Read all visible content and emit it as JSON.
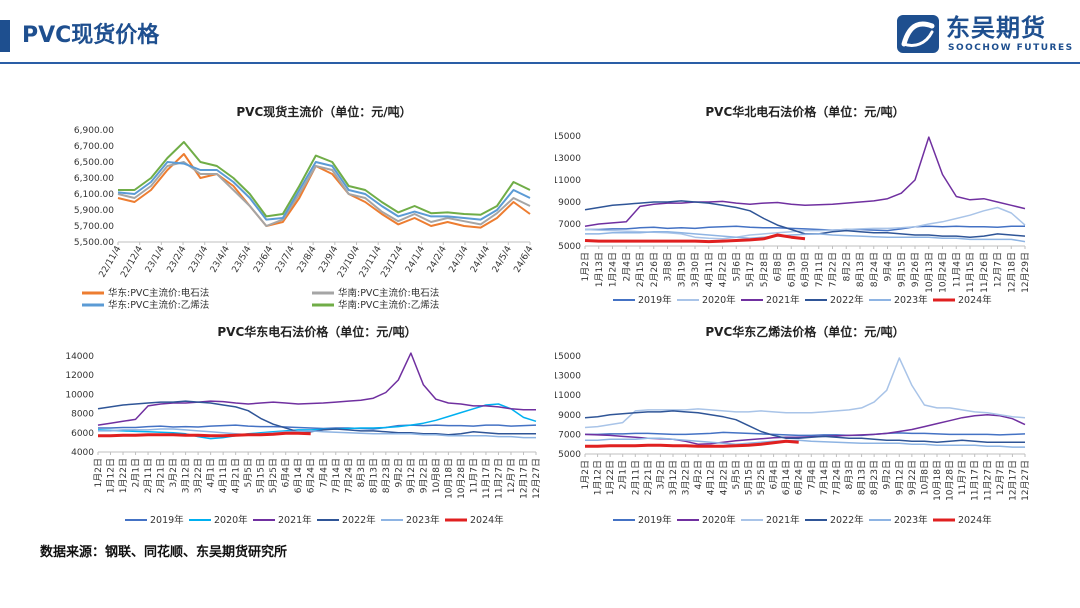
{
  "page": {
    "title": "PVC现货价格",
    "source": "数据来源：钢联、同花顺、东吴期货研究所"
  },
  "logo": {
    "cn": "东吴期货",
    "en": "SOOCHOW FUTURES",
    "primary_color": "#1e4f8f"
  },
  "chart_data": [
    {
      "id": "spot",
      "type": "line",
      "title": "PVC现货主流价（单位：元/吨）",
      "ylim": [
        5500,
        6900
      ],
      "y_ticks": [
        5500,
        5700,
        5900,
        6100,
        6300,
        6500,
        6700,
        6900
      ],
      "y_tick_labels": [
        "5,500.00",
        "5,700.00",
        "5,900.00",
        "6,100.00",
        "6,300.00",
        "6,500.00",
        "6,700.00",
        "6,900.00"
      ],
      "x_tick_labels": [
        "22/11/4",
        "22/12/4",
        "23/1/4",
        "23/2/4",
        "23/3/4",
        "23/4/4",
        "23/5/4",
        "23/6/4",
        "23/7/4",
        "23/8/4",
        "23/9/4",
        "23/10/4",
        "23/11/4",
        "23/12/4",
        "24/1/4",
        "24/2/4",
        "24/3/4",
        "24/4/4",
        "24/5/4",
        "24/6/4"
      ],
      "legend_cols": 2,
      "series": [
        {
          "name": "华东:PVC主流价:电石法",
          "color": "#ed7d31",
          "width": 2,
          "values": [
            6050,
            6000,
            6150,
            6400,
            6600,
            6300,
            6350,
            6200,
            5950,
            5700,
            5750,
            6050,
            6450,
            6350,
            6100,
            6000,
            5850,
            5720,
            5800,
            5700,
            5750,
            5700,
            5680,
            5800,
            6000,
            5850
          ]
        },
        {
          "name": "华南:PVC主流价:电石法",
          "color": "#a5a5a5",
          "width": 2,
          "values": [
            6100,
            6050,
            6200,
            6450,
            6500,
            6350,
            6350,
            6150,
            5950,
            5700,
            5780,
            6100,
            6450,
            6400,
            6100,
            6050,
            5880,
            5760,
            5850,
            5750,
            5800,
            5760,
            5720,
            5860,
            6050,
            5950
          ]
        },
        {
          "name": "华东:PVC主流价:乙烯法",
          "color": "#5b9bd5",
          "width": 2,
          "values": [
            6120,
            6100,
            6250,
            6500,
            6480,
            6400,
            6400,
            6250,
            6050,
            5780,
            5800,
            6150,
            6500,
            6450,
            6150,
            6100,
            5950,
            5820,
            5880,
            5820,
            5820,
            5800,
            5780,
            5900,
            6150,
            6050
          ]
        },
        {
          "name": "华南:PVC主流价:乙烯法",
          "color": "#70ad47",
          "width": 2,
          "values": [
            6150,
            6150,
            6300,
            6550,
            6750,
            6500,
            6450,
            6300,
            6100,
            5820,
            5850,
            6200,
            6580,
            6500,
            6200,
            6150,
            6000,
            5870,
            5950,
            5860,
            5870,
            5850,
            5840,
            5950,
            6250,
            6150
          ]
        }
      ]
    },
    {
      "id": "north",
      "type": "line",
      "title": "PVC华北电石法价格（单位：元/吨）",
      "ylim": [
        5000,
        15000
      ],
      "y_ticks": [
        5000,
        7000,
        9000,
        11000,
        13000,
        15000
      ],
      "y_tick_labels": [
        "5000",
        "7000",
        "9000",
        "11000",
        "13000",
        "15000"
      ],
      "x_tick_labels": [
        "1月2日",
        "1月13日",
        "1月24日",
        "2月4日",
        "2月15日",
        "2月26日",
        "3月8日",
        "3月19日",
        "3月30日",
        "4月11日",
        "4月22日",
        "5月6日",
        "5月17日",
        "5月28日",
        "6月8日",
        "6月19日",
        "6月30日",
        "7月11日",
        "7月22日",
        "8月2日",
        "8月13日",
        "8月24日",
        "9月4日",
        "9月15日",
        "9月26日",
        "10月13日",
        "10月24日",
        "11月4日",
        "11月15日",
        "11月26日",
        "12月7日",
        "12月18日",
        "12月29日"
      ],
      "legend_cols": 6,
      "series": [
        {
          "name": "2019年",
          "color": "#4472c4",
          "width": 1.5,
          "values": [
            6500,
            6500,
            6550,
            6550,
            6650,
            6700,
            6600,
            6650,
            6600,
            6700,
            6750,
            6800,
            6700,
            6650,
            6650,
            6600,
            6550,
            6500,
            6450,
            6500,
            6500,
            6450,
            6400,
            6550,
            6750,
            6800,
            6750,
            6800,
            6750,
            6750,
            6700,
            6800,
            6800
          ]
        },
        {
          "name": "2020年",
          "color": "#a9c4e8",
          "width": 1.5,
          "values": [
            6500,
            6450,
            6400,
            6350,
            6300,
            6250,
            6200,
            6100,
            5800,
            5700,
            5650,
            5800,
            6000,
            6100,
            6200,
            6300,
            6400,
            6400,
            6450,
            6500,
            6550,
            6600,
            6600,
            6650,
            6750,
            7000,
            7200,
            7500,
            7800,
            8200,
            8500,
            8000,
            6900
          ]
        },
        {
          "name": "2021年",
          "color": "#7030a0",
          "width": 1.5,
          "values": [
            6800,
            7000,
            7100,
            7200,
            8600,
            8800,
            8900,
            8900,
            9000,
            9000,
            9050,
            8900,
            8800,
            8900,
            8950,
            8800,
            8700,
            8750,
            8800,
            8900,
            9000,
            9100,
            9300,
            9800,
            11000,
            14900,
            11500,
            9500,
            9200,
            9300,
            9000,
            8700,
            8400
          ]
        },
        {
          "name": "2022年",
          "color": "#2f5597",
          "width": 1.5,
          "values": [
            8300,
            8500,
            8700,
            8800,
            8900,
            9000,
            9000,
            9100,
            9000,
            8900,
            8700,
            8500,
            8200,
            7500,
            6900,
            6500,
            6100,
            6100,
            6300,
            6400,
            6300,
            6200,
            6200,
            6100,
            6000,
            6000,
            5900,
            5900,
            5800,
            5900,
            6100,
            6000,
            5900
          ]
        },
        {
          "name": "2023年",
          "color": "#8eb4e3",
          "width": 1.5,
          "values": [
            6100,
            6100,
            6200,
            6200,
            6200,
            6300,
            6300,
            6200,
            6100,
            6000,
            5900,
            5800,
            5700,
            5800,
            5900,
            6000,
            6050,
            6100,
            6000,
            5950,
            5900,
            5850,
            5800,
            5800,
            5800,
            5800,
            5700,
            5700,
            5600,
            5600,
            5600,
            5600,
            5400
          ]
        },
        {
          "name": "2024年",
          "color": "#e02020",
          "width": 3,
          "values": [
            5500,
            5450,
            5450,
            5450,
            5450,
            5450,
            5450,
            5450,
            5450,
            5400,
            5450,
            5500,
            5550,
            5650,
            6000,
            5800,
            5650
          ]
        }
      ]
    },
    {
      "id": "east",
      "type": "line",
      "title": "PVC华东电石法价格（单位：元/吨）",
      "ylim": [
        4000,
        14000
      ],
      "y_ticks": [
        4000,
        6000,
        8000,
        10000,
        12000,
        14000
      ],
      "y_tick_labels": [
        "4000",
        "6000",
        "8000",
        "10000",
        "12000",
        "14000"
      ],
      "x_tick_labels": [
        "1月2日",
        "1月12日",
        "1月22日",
        "2月1日",
        "2月11日",
        "2月21日",
        "3月2日",
        "3月12日",
        "3月22日",
        "4月1日",
        "4月11日",
        "4月21日",
        "5月5日",
        "5月15日",
        "5月25日",
        "6月4日",
        "6月14日",
        "6月24日",
        "7月4日",
        "7月14日",
        "7月24日",
        "8月3日",
        "8月13日",
        "8月23日",
        "9月2日",
        "9月12日",
        "9月22日",
        "10月8日",
        "10月18日",
        "10月28日",
        "11月7日",
        "11月17日",
        "11月27日",
        "12月7日",
        "12月17日",
        "12月27日"
      ],
      "legend_cols": 6,
      "series": [
        {
          "name": "2019年",
          "color": "#4472c4",
          "width": 1.5,
          "values": [
            6500,
            6500,
            6550,
            6550,
            6650,
            6700,
            6600,
            6650,
            6600,
            6700,
            6750,
            6800,
            6700,
            6650,
            6650,
            6600,
            6550,
            6500,
            6450,
            6500,
            6500,
            6450,
            6400,
            6550,
            6750,
            6800,
            6750,
            6800,
            6750,
            6750,
            6700,
            6800,
            6800,
            6700,
            6750,
            6800
          ]
        },
        {
          "name": "2020年",
          "color": "#00b0f0",
          "width": 1.5,
          "values": [
            6300,
            6250,
            6200,
            6150,
            6100,
            6050,
            6000,
            5900,
            5600,
            5400,
            5500,
            5700,
            5900,
            6000,
            6100,
            6200,
            6300,
            6300,
            6350,
            6400,
            6450,
            6500,
            6500,
            6550,
            6650,
            6800,
            7000,
            7300,
            7700,
            8100,
            8500,
            8900,
            9000,
            8500,
            7600,
            7200
          ]
        },
        {
          "name": "2021年",
          "color": "#7030a0",
          "width": 1.5,
          "values": [
            6800,
            7000,
            7200,
            7400,
            8800,
            9000,
            9100,
            9100,
            9200,
            9300,
            9250,
            9100,
            9000,
            9100,
            9200,
            9100,
            9000,
            9050,
            9100,
            9200,
            9300,
            9400,
            9600,
            10200,
            11500,
            14300,
            11000,
            9500,
            9100,
            9000,
            8800,
            8800,
            8700,
            8500,
            8400,
            8400
          ]
        },
        {
          "name": "2022年",
          "color": "#2f5597",
          "width": 1.5,
          "values": [
            8500,
            8700,
            8900,
            9000,
            9100,
            9200,
            9200,
            9300,
            9200,
            9100,
            8900,
            8700,
            8300,
            7500,
            6900,
            6500,
            6100,
            6100,
            6300,
            6400,
            6300,
            6200,
            6200,
            6100,
            6000,
            6000,
            5900,
            5900,
            5800,
            5900,
            6100,
            6000,
            5900,
            5900,
            5900,
            5900
          ]
        },
        {
          "name": "2023年",
          "color": "#8eb4e3",
          "width": 1.5,
          "values": [
            6200,
            6200,
            6300,
            6300,
            6300,
            6400,
            6400,
            6300,
            6200,
            6100,
            6000,
            5900,
            5800,
            5900,
            6000,
            6100,
            6150,
            6200,
            6100,
            6050,
            6000,
            5950,
            5900,
            5900,
            5900,
            5900,
            5800,
            5800,
            5700,
            5700,
            5700,
            5700,
            5600,
            5600,
            5500,
            5500
          ]
        },
        {
          "name": "2024年",
          "color": "#e02020",
          "width": 3,
          "values": [
            5700,
            5700,
            5750,
            5750,
            5800,
            5800,
            5800,
            5750,
            5750,
            5700,
            5700,
            5750,
            5800,
            5800,
            5850,
            5950,
            5950,
            5900
          ]
        }
      ]
    },
    {
      "id": "ethylene",
      "type": "line",
      "title": "PVC华东乙烯法价格（单位：元/吨）",
      "ylim": [
        5000,
        15000
      ],
      "y_ticks": [
        5000,
        7000,
        9000,
        11000,
        13000,
        15000
      ],
      "y_tick_labels": [
        "5000",
        "7000",
        "9000",
        "11000",
        "13000",
        "15000"
      ],
      "x_tick_labels": [
        "1月2日",
        "1月12日",
        "1月22日",
        "2月1日",
        "2月11日",
        "2月21日",
        "3月2日",
        "3月12日",
        "3月22日",
        "4月2日",
        "4月12日",
        "4月22日",
        "5月5日",
        "5月15日",
        "5月25日",
        "6月4日",
        "6月14日",
        "6月24日",
        "7月4日",
        "7月14日",
        "7月24日",
        "8月3日",
        "8月13日",
        "8月23日",
        "9月2日",
        "9月12日",
        "9月22日",
        "10月8日",
        "10月18日",
        "10月28日",
        "11月7日",
        "11月17日",
        "11月27日",
        "12月7日",
        "12月17日",
        "12月27日"
      ],
      "legend_cols": 6,
      "series": [
        {
          "name": "2019年",
          "color": "#4472c4",
          "width": 1.5,
          "values": [
            7000,
            7000,
            7050,
            7050,
            7100,
            7100,
            7050,
            7000,
            7000,
            7050,
            7100,
            7200,
            7150,
            7100,
            7050,
            7000,
            6950,
            6900,
            6900,
            6950,
            6950,
            6900,
            6900,
            7000,
            7100,
            7150,
            7100,
            7100,
            7050,
            7000,
            7000,
            7000,
            7000,
            6950,
            7000,
            7050
          ]
        },
        {
          "name": "2020年",
          "color": "#7030a0",
          "width": 1.5,
          "values": [
            7000,
            6950,
            6900,
            6800,
            6700,
            6600,
            6550,
            6500,
            6300,
            6000,
            6050,
            6200,
            6350,
            6450,
            6550,
            6650,
            6700,
            6700,
            6750,
            6800,
            6850,
            6900,
            6950,
            7000,
            7100,
            7300,
            7500,
            7800,
            8100,
            8400,
            8700,
            8900,
            9000,
            8900,
            8600,
            8000
          ]
        },
        {
          "name": "2021年",
          "color": "#a9c4e8",
          "width": 1.5,
          "values": [
            7700,
            7800,
            8000,
            8200,
            9400,
            9500,
            9500,
            9500,
            9500,
            9600,
            9500,
            9400,
            9300,
            9300,
            9400,
            9300,
            9200,
            9200,
            9200,
            9300,
            9400,
            9500,
            9700,
            10300,
            11500,
            14800,
            12000,
            10000,
            9700,
            9700,
            9500,
            9300,
            9200,
            9000,
            8800,
            8700
          ]
        },
        {
          "name": "2022年",
          "color": "#2f5597",
          "width": 1.5,
          "values": [
            8700,
            8800,
            9000,
            9100,
            9200,
            9300,
            9300,
            9400,
            9300,
            9200,
            9000,
            8800,
            8500,
            7900,
            7300,
            6900,
            6600,
            6600,
            6700,
            6800,
            6700,
            6600,
            6600,
            6500,
            6400,
            6400,
            6300,
            6300,
            6200,
            6300,
            6400,
            6300,
            6200,
            6200,
            6200,
            6200
          ]
        },
        {
          "name": "2023年",
          "color": "#8eb4e3",
          "width": 1.5,
          "values": [
            6400,
            6400,
            6500,
            6500,
            6500,
            6600,
            6600,
            6500,
            6400,
            6300,
            6200,
            6100,
            6000,
            6100,
            6200,
            6300,
            6350,
            6400,
            6300,
            6250,
            6200,
            6150,
            6100,
            6100,
            6100,
            6100,
            6000,
            6000,
            5900,
            5900,
            5900,
            5900,
            5800,
            5800,
            5700,
            5700
          ]
        },
        {
          "name": "2024年",
          "color": "#e02020",
          "width": 3,
          "values": [
            5800,
            5800,
            5850,
            5850,
            5850,
            5900,
            5900,
            5850,
            5850,
            5800,
            5800,
            5800,
            5850,
            5900,
            6000,
            6150,
            6300,
            6200
          ]
        }
      ]
    }
  ]
}
